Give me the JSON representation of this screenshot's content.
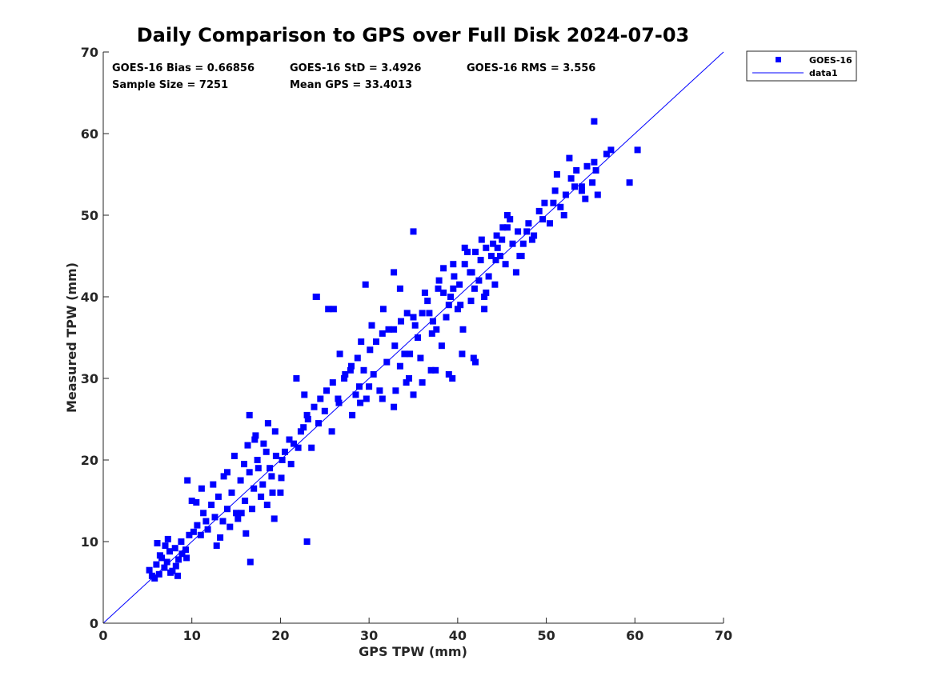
{
  "chart_data": {
    "type": "scatter",
    "title": "Daily Comparison to GPS over Full Disk 2024-07-03",
    "xlabel": "GPS TPW (mm)",
    "ylabel": "Measured TPW (mm)",
    "xlim": [
      0,
      70
    ],
    "ylim": [
      0,
      70
    ],
    "xticks": [
      0,
      10,
      20,
      30,
      40,
      50,
      60,
      70
    ],
    "yticks": [
      0,
      10,
      20,
      30,
      40,
      50,
      60,
      70
    ],
    "grid": false,
    "legend_position": "outside top-right",
    "stats": {
      "bias": "GOES-16 Bias = 0.66856",
      "std": "GOES-16 StD = 3.4926",
      "rms": "GOES-16 RMS = 3.556",
      "sample_size": "Sample Size = 7251",
      "mean_gps": "Mean GPS = 33.4013"
    },
    "series": [
      {
        "name": "GOES-16",
        "kind": "scatter",
        "color": "#0000ff",
        "x": [
          5.2,
          5.5,
          6.0,
          6.3,
          6.6,
          6.9,
          7.2,
          7.5,
          7.8,
          8.1,
          8.5,
          8.9,
          9.3,
          5.8,
          6.4,
          7.0,
          7.6,
          8.2,
          8.8,
          9.4,
          6.1,
          7.3,
          8.4,
          9.7,
          10.2,
          10.6,
          11.0,
          11.3,
          11.8,
          12.2,
          12.6,
          13.0,
          13.5,
          14.0,
          14.5,
          15.0,
          15.5,
          16.0,
          16.5,
          17.0,
          17.5,
          18.0,
          18.5,
          19.0,
          19.5,
          20.0,
          20.5,
          21.0,
          9.5,
          10.0,
          10.5,
          11.1,
          11.6,
          12.4,
          13.2,
          14.3,
          15.2,
          16.1,
          16.8,
          17.4,
          18.1,
          18.8,
          19.4,
          20.2,
          21.2,
          22.0,
          22.6,
          23.0,
          14.0,
          14.8,
          15.6,
          16.3,
          17.1,
          17.8,
          18.6,
          19.3,
          20.1,
          16.5,
          17.2,
          18.4,
          19.1,
          12.8,
          13.6,
          15.9,
          21.5,
          22.3,
          23.1,
          23.8,
          24.5,
          25.2,
          25.9,
          26.6,
          27.3,
          28.0,
          28.7,
          29.4,
          30.1,
          30.8,
          31.5,
          32.2,
          32.9,
          33.6,
          34.3,
          35.0,
          21.8,
          22.7,
          23.5,
          24.3,
          25.0,
          25.8,
          26.5,
          27.2,
          28.1,
          28.9,
          29.7,
          30.5,
          31.2,
          32.0,
          32.8,
          33.5,
          34.2,
          35.0,
          24.1,
          25.4,
          26.7,
          27.9,
          29.1,
          30.3,
          31.6,
          32.8,
          34.0,
          35.2,
          36.0,
          36.6,
          37.2,
          37.8,
          38.4,
          39.0,
          39.6,
          40.2,
          40.8,
          41.4,
          42.0,
          42.6,
          43.2,
          43.8,
          44.4,
          45.0,
          45.6,
          46.2,
          46.8,
          35.5,
          36.3,
          37.1,
          37.9,
          38.7,
          39.5,
          40.3,
          41.1,
          41.9,
          42.7,
          43.5,
          44.3,
          45.1,
          45.9,
          36.8,
          37.6,
          38.4,
          39.2,
          40.0,
          40.8,
          41.6,
          42.4,
          43.2,
          44.0,
          44.8,
          45.6,
          34.6,
          35.8,
          37.0,
          38.2,
          39.4,
          40.6,
          41.8,
          43.0,
          44.2,
          45.4,
          46.6,
          47.8,
          47.4,
          48.0,
          48.6,
          49.2,
          49.8,
          50.4,
          51.0,
          51.6,
          52.2,
          52.8,
          53.4,
          54.0,
          54.6,
          55.2,
          55.8,
          47.2,
          48.4,
          49.6,
          50.8,
          52.0,
          53.2,
          54.4,
          55.6,
          56.8,
          57.3,
          51.2,
          52.6,
          54.0,
          55.4,
          59.4,
          60.3,
          55.4,
          23.0,
          16.6,
          24.0,
          26.0,
          29.6,
          32.8,
          35.0,
          43.0,
          44.5,
          47.0,
          41.5,
          39.5,
          33.5,
          29.0,
          28.5,
          30.0,
          31.5,
          33.0,
          34.5,
          36.0,
          37.5,
          39.0,
          40.5,
          42.0
        ],
        "y": [
          6.5,
          5.8,
          7.2,
          6.0,
          8.0,
          6.8,
          7.5,
          8.8,
          6.4,
          9.2,
          7.8,
          8.5,
          9.0,
          5.5,
          8.3,
          9.5,
          6.2,
          7.0,
          10.0,
          8.0,
          9.8,
          10.3,
          5.8,
          10.8,
          11.2,
          12.0,
          10.8,
          13.5,
          11.5,
          14.5,
          13.0,
          15.5,
          12.5,
          14.0,
          16.0,
          13.5,
          17.5,
          15.0,
          18.5,
          16.5,
          19.0,
          17.0,
          14.5,
          18.0,
          20.5,
          16.0,
          21.0,
          22.5,
          17.5,
          15.0,
          14.8,
          16.5,
          12.5,
          17.0,
          10.5,
          11.8,
          12.8,
          11.0,
          14.0,
          20.0,
          22.0,
          19.0,
          23.5,
          20.0,
          19.5,
          21.5,
          24.0,
          25.5,
          18.5,
          20.5,
          13.5,
          21.8,
          22.5,
          15.5,
          24.5,
          12.8,
          17.8,
          25.5,
          23.0,
          21.0,
          16.0,
          9.5,
          18.0,
          19.5,
          22.0,
          23.5,
          25.0,
          26.5,
          27.5,
          28.5,
          29.5,
          27.0,
          30.5,
          31.5,
          32.5,
          31.0,
          33.5,
          34.5,
          35.5,
          36.0,
          34.0,
          37.0,
          38.0,
          37.5,
          30.0,
          28.0,
          21.5,
          24.5,
          26.0,
          23.5,
          27.5,
          30.0,
          25.5,
          29.0,
          27.5,
          30.5,
          28.5,
          32.0,
          26.5,
          31.5,
          29.5,
          28.0,
          40.0,
          38.5,
          33.0,
          31.0,
          34.5,
          36.5,
          38.5,
          36.0,
          33.0,
          36.5,
          38.0,
          39.5,
          37.0,
          41.0,
          40.5,
          39.0,
          42.5,
          41.5,
          44.0,
          43.0,
          45.5,
          44.5,
          46.0,
          45.0,
          47.5,
          47.0,
          48.5,
          46.5,
          48.0,
          35.0,
          40.5,
          35.5,
          42.0,
          37.5,
          44.0,
          39.0,
          45.5,
          41.0,
          47.0,
          42.5,
          44.5,
          48.5,
          49.5,
          38.0,
          36.0,
          43.5,
          40.0,
          38.5,
          46.0,
          43.0,
          42.0,
          40.5,
          46.5,
          45.0,
          50.0,
          33.0,
          32.5,
          31.0,
          34.0,
          30.0,
          36.0,
          32.5,
          38.5,
          41.5,
          44.0,
          43.0,
          48.0,
          46.5,
          49.0,
          47.5,
          50.5,
          51.5,
          49.0,
          53.0,
          51.0,
          52.5,
          54.5,
          55.5,
          53.5,
          56.0,
          54.0,
          52.5,
          45.0,
          47.0,
          49.5,
          51.5,
          50.0,
          53.5,
          52.0,
          55.5,
          57.5,
          58.0,
          55.0,
          57.0,
          53.0,
          56.5,
          54.0,
          58.0,
          61.5,
          10.0,
          7.5,
          40.0,
          38.5,
          41.5,
          43.0,
          48.0,
          40.0,
          46.0,
          45.0,
          39.5,
          41.0,
          41.0,
          27.0,
          28.0,
          29.0,
          27.5,
          28.5,
          30.0,
          29.5,
          31.0,
          30.5,
          33.0,
          32.0
        ]
      },
      {
        "name": "data1",
        "kind": "line",
        "color": "#0000ff",
        "x": [
          0,
          70
        ],
        "y": [
          0,
          70
        ]
      }
    ]
  }
}
